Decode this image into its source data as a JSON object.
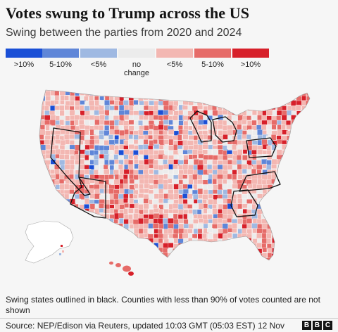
{
  "title": "Votes swung to Trump across the US",
  "subtitle": "Swing between the parties from 2020 and 2024",
  "legend": [
    {
      "label": ">10%",
      "color": "#1a4fd6"
    },
    {
      "label": "5-10%",
      "color": "#5f86d8"
    },
    {
      "label": "<5%",
      "color": "#9fb9e2"
    },
    {
      "label": "no change",
      "color": "#ececec"
    },
    {
      "label": "<5%",
      "color": "#f3b7b2"
    },
    {
      "label": "5-10%",
      "color": "#e66b68"
    },
    {
      "label": ">10%",
      "color": "#d7202a"
    }
  ],
  "note": "Swing states outlined in black. Counties with less than 90% of votes counted are not shown",
  "source": "Source: NEP/Edison via Reuters, updated 10:03 GMT (05:03 EST) 12 Nov",
  "logo": [
    "B",
    "B",
    "C"
  ],
  "map": {
    "background_land": "#f1e4e3",
    "swing_states": [
      "Nevada",
      "Arizona",
      "Wisconsin",
      "Michigan",
      "Pennsylvania",
      "North Carolina",
      "Georgia"
    ]
  }
}
